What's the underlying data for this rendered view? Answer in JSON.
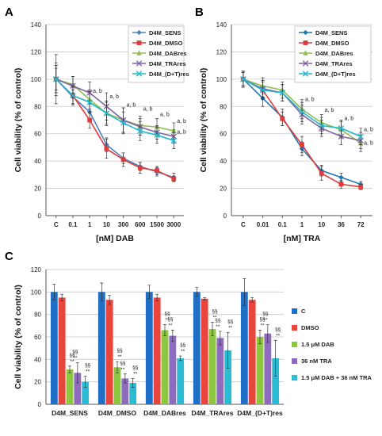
{
  "chart_data": [
    {
      "panel": "A",
      "type": "line",
      "xlabel": "[nM]  DAB",
      "ylabel": "Cell viability (% of control)",
      "categories": [
        "C",
        "0.1",
        "1",
        "10",
        "300",
        "600",
        "1500",
        "3000"
      ],
      "ylim": [
        0,
        140
      ],
      "yticks": [
        0,
        20,
        40,
        60,
        80,
        100,
        120,
        140
      ],
      "grid": true,
      "legend_position": "top-right",
      "series": [
        {
          "name": "D4M_SENS",
          "color": "#4f81bd",
          "marker": "diamond",
          "values": [
            100,
            87,
            76,
            52,
            42,
            36,
            32,
            28
          ],
          "errors": [
            8,
            5,
            6,
            5,
            4,
            3,
            3,
            3
          ]
        },
        {
          "name": "D4M_DMSO",
          "color": "#e03c3c",
          "marker": "square",
          "values": [
            100,
            88,
            70,
            49,
            41,
            35,
            33,
            27
          ],
          "errors": [
            10,
            6,
            6,
            7,
            5,
            4,
            3,
            2
          ]
        },
        {
          "name": "D4M_DABres",
          "color": "#8fbf4f",
          "marker": "triangle",
          "values": [
            100,
            96,
            85,
            75,
            70,
            66,
            65,
            62
          ],
          "errors": [
            12,
            6,
            7,
            8,
            9,
            7,
            6,
            6
          ]
        },
        {
          "name": "D4M_TRAres",
          "color": "#8064a2",
          "marker": "x",
          "values": [
            100,
            95,
            90,
            80,
            70,
            65,
            61,
            58
          ],
          "errors": [
            18,
            7,
            8,
            10,
            9,
            6,
            5,
            5
          ]
        },
        {
          "name": "D4M_(D+T)res",
          "color": "#22b8cf",
          "marker": "x",
          "values": [
            100,
            88,
            83,
            75,
            68,
            62,
            59,
            55
          ],
          "errors": [
            10,
            7,
            8,
            9,
            8,
            7,
            6,
            6
          ]
        }
      ],
      "annotations": [
        {
          "category": "1",
          "value": 90,
          "text": "a, b"
        },
        {
          "category": "10",
          "value": 86,
          "text": "a, b"
        },
        {
          "category": "300",
          "value": 80,
          "text": "a, b"
        },
        {
          "category": "600",
          "value": 77,
          "text": "a, b"
        },
        {
          "category": "1500",
          "value": 73,
          "text": "a, b"
        },
        {
          "category": "3000",
          "value": 68,
          "text": "a, b"
        },
        {
          "category": "3000",
          "value": 60,
          "text": "a, b"
        }
      ]
    },
    {
      "panel": "B",
      "type": "line",
      "xlabel": "[nM]  TRA",
      "ylabel": "Cell viability  (% of control)",
      "categories": [
        "C",
        "0.01",
        "0.1",
        "1",
        "10",
        "36",
        "72"
      ],
      "ylim": [
        0,
        140
      ],
      "yticks": [
        0,
        20,
        40,
        60,
        80,
        100,
        120,
        140
      ],
      "grid": true,
      "legend_position": "top-right",
      "series": [
        {
          "name": "D4M_SENS",
          "color": "#1f77b4",
          "marker": "diamond",
          "values": [
            100,
            86,
            72,
            49,
            33,
            28,
            23
          ],
          "errors": [
            5,
            6,
            6,
            5,
            4,
            3,
            2
          ]
        },
        {
          "name": "D4M_DMSO",
          "color": "#e03c3c",
          "marker": "square",
          "values": [
            100,
            92,
            71,
            52,
            31,
            23,
            21
          ],
          "errors": [
            6,
            7,
            5,
            6,
            5,
            3,
            2
          ]
        },
        {
          "name": "D4M_DABres",
          "color": "#8fbf4f",
          "marker": "triangle",
          "values": [
            100,
            95,
            92,
            78,
            68,
            63,
            53
          ],
          "errors": [
            5,
            6,
            6,
            7,
            6,
            6,
            6
          ]
        },
        {
          "name": "D4M_TRAres",
          "color": "#8064a2",
          "marker": "x",
          "values": [
            100,
            93,
            90,
            74,
            64,
            58,
            55
          ],
          "errors": [
            5,
            6,
            6,
            7,
            6,
            6,
            6
          ]
        },
        {
          "name": "D4M_(D+T)res",
          "color": "#22b8cf",
          "marker": "x",
          "values": [
            100,
            92,
            90,
            76,
            66,
            64,
            58
          ],
          "errors": [
            5,
            6,
            6,
            7,
            6,
            6,
            6
          ]
        }
      ],
      "annotations": [
        {
          "category": "1",
          "value": 84,
          "text": "a, b"
        },
        {
          "category": "10",
          "value": 76,
          "text": "a, b"
        },
        {
          "category": "36",
          "value": 70,
          "text": "a, b"
        },
        {
          "category": "72",
          "value": 62,
          "text": "a, b"
        },
        {
          "category": "72",
          "value": 52,
          "text": "a, b"
        }
      ]
    },
    {
      "panel": "C",
      "type": "bar",
      "ylabel": "Cell viability  (% of control)",
      "categories": [
        "D4M_SENS",
        "D4M_DMSO",
        "D4M_DABres",
        "D4M_TRAres",
        "D4M_(D+T)res"
      ],
      "ylim": [
        0,
        120
      ],
      "yticks": [
        0,
        20,
        40,
        60,
        80,
        100,
        120
      ],
      "grid": true,
      "legend_position": "right",
      "series": [
        {
          "name": "C",
          "color": "#1f6fc7",
          "values": [
            100,
            100,
            100,
            100,
            100
          ],
          "errors": [
            7,
            8,
            6,
            4,
            12
          ]
        },
        {
          "name": "DMSO",
          "color": "#e8453c",
          "values": [
            95,
            93,
            95,
            94,
            93
          ],
          "errors": [
            3,
            4,
            3,
            1,
            2
          ]
        },
        {
          "name": "1.5 μM DAB",
          "color": "#8dc63f",
          "values": [
            31,
            33,
            66,
            67,
            60
          ],
          "errors": [
            3,
            5,
            5,
            6,
            6
          ]
        },
        {
          "name": "36 nM TRA",
          "color": "#8e6bbf",
          "values": [
            28,
            23,
            61,
            59,
            63
          ],
          "errors": [
            9,
            4,
            5,
            6,
            8
          ]
        },
        {
          "name": "1.5 μM DAB + 36 nM TRA",
          "color": "#2bbcd4",
          "values": [
            20,
            19,
            41,
            48,
            41
          ],
          "errors": [
            5,
            4,
            2,
            16,
            16
          ]
        }
      ],
      "significance": [
        [
          "",
          "",
          "§§ **",
          "§§ **",
          "§§ **"
        ],
        [
          "",
          "",
          "§§ **",
          "§§ **",
          "§§ **"
        ],
        [
          "",
          "",
          "§§ **",
          "§§ **",
          "§§ **"
        ],
        [
          "",
          "",
          "§§ **",
          "§§ **",
          "§§ **"
        ],
        [
          "",
          "",
          "§§ **",
          "§§ **",
          "§§ **"
        ]
      ]
    }
  ],
  "panel_labels": [
    "A",
    "B",
    "C"
  ]
}
